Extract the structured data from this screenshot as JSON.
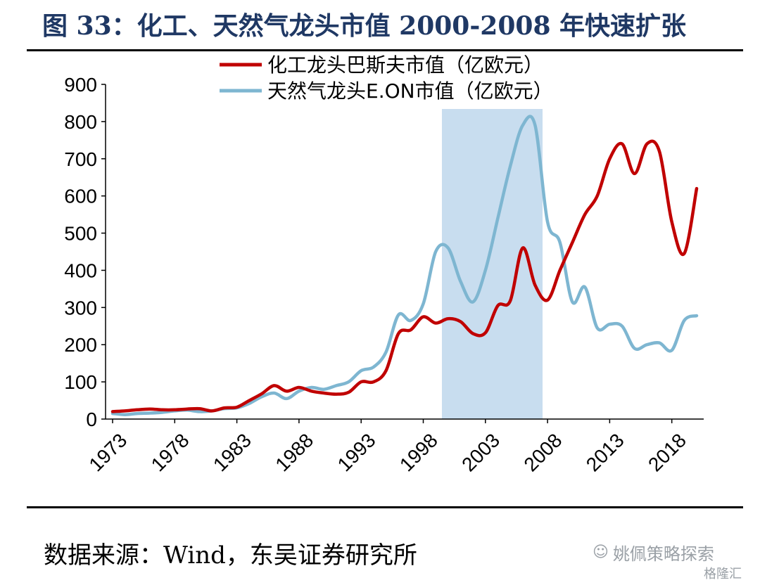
{
  "header": {
    "title": "图 33：化工、天然气龙头市值 2000-2008 年快速扩张"
  },
  "footer": {
    "source": "数据来源：Wind，东吴证券研究所",
    "watermark": "姚佩策略探索",
    "watermark2": "格隆汇"
  },
  "colors": {
    "basf": "#c00000",
    "eon": "#7eb6d1",
    "highlight": "#c5dbee"
  },
  "chart_data": {
    "type": "line",
    "x_tick_labels": [
      "1973",
      "1978",
      "1983",
      "1988",
      "1993",
      "1998",
      "2003",
      "2008",
      "2013",
      "2018"
    ],
    "y_tick_labels": [
      "0",
      "100",
      "200",
      "300",
      "400",
      "500",
      "600",
      "700",
      "800",
      "900"
    ],
    "ylim": [
      0,
      900
    ],
    "xlim": [
      1973,
      2020
    ],
    "grid": false,
    "legend_position": "top",
    "highlight_range": [
      1999.5,
      2007.6
    ],
    "series": [
      {
        "name": "化工龙头巴斯夫市值（亿欧元）",
        "x": [
          1973,
          1974,
          1975,
          1976,
          1977,
          1978,
          1979,
          1980,
          1981,
          1982,
          1983,
          1984,
          1985,
          1986,
          1987,
          1988,
          1989,
          1990,
          1991,
          1992,
          1993,
          1994,
          1995,
          1996,
          1997,
          1998,
          1999,
          2000,
          2001,
          2002,
          2003,
          2004,
          2005,
          2006,
          2007,
          2008,
          2009,
          2010,
          2011,
          2012,
          2013,
          2014,
          2015,
          2016,
          2017,
          2018,
          2019,
          2020
        ],
        "y": [
          20,
          22,
          25,
          27,
          25,
          25,
          27,
          28,
          22,
          30,
          32,
          50,
          68,
          90,
          75,
          85,
          75,
          70,
          67,
          72,
          100,
          100,
          130,
          230,
          240,
          275,
          258,
          270,
          262,
          230,
          232,
          305,
          318,
          460,
          360,
          320,
          400,
          475,
          550,
          600,
          700,
          740,
          660,
          740,
          720,
          530,
          445,
          620
        ]
      },
      {
        "name": "天然气龙头E.ON市值（亿欧元）",
        "x": [
          1973,
          1974,
          1975,
          1976,
          1977,
          1978,
          1979,
          1980,
          1981,
          1982,
          1983,
          1984,
          1985,
          1986,
          1987,
          1988,
          1989,
          1990,
          1991,
          1992,
          1993,
          1994,
          1995,
          1996,
          1997,
          1998,
          1999,
          2000,
          2001,
          2002,
          2003,
          2004,
          2005,
          2006,
          2007,
          2008,
          2009,
          2010,
          2011,
          2012,
          2013,
          2014,
          2015,
          2016,
          2017,
          2018,
          2019,
          2020
        ],
        "y": [
          15,
          12,
          15,
          16,
          18,
          22,
          24,
          20,
          22,
          28,
          30,
          42,
          60,
          70,
          55,
          75,
          85,
          80,
          90,
          100,
          130,
          140,
          180,
          280,
          265,
          310,
          450,
          460,
          370,
          315,
          400,
          540,
          680,
          790,
          790,
          530,
          475,
          315,
          355,
          245,
          255,
          250,
          190,
          200,
          205,
          185,
          265,
          278
        ]
      }
    ]
  }
}
